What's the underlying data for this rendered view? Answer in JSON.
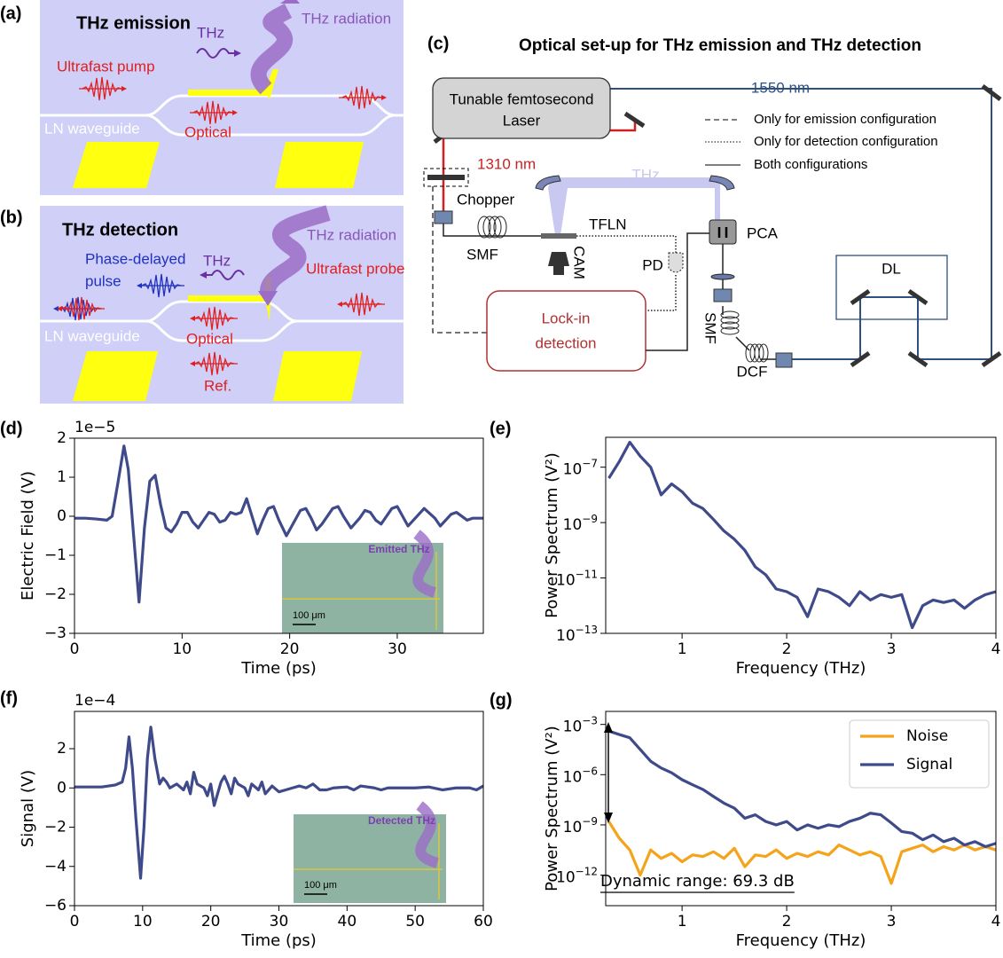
{
  "figure": {
    "panel_labels": [
      "(a)",
      "(b)",
      "(c)",
      "(d)",
      "(e)",
      "(f)",
      "(g)"
    ],
    "a": {
      "title": "THz emission",
      "radiation": "THz radiation",
      "pump": "Ultrafast pump",
      "thz": "THz",
      "optical": "Optical",
      "waveguide": "LN waveguide"
    },
    "b": {
      "title": "THz detection",
      "radiation": "THz radiation",
      "pulse": [
        "Phase-delayed",
        "pulse"
      ],
      "thz": "THz",
      "probe": "Ultrafast probe",
      "optical": "Optical",
      "waveguide": "LN waveguide",
      "ref": "Ref."
    },
    "c": {
      "title": "Optical set-up for THz emission and THz detection",
      "laser": [
        "Tunable femtosecond",
        "Laser"
      ],
      "wl1550": "1550 nm",
      "wl1310": "1310 nm",
      "thz": "THz",
      "chopper": "Chopper",
      "tfln": "TFLN",
      "smf1": "SMF",
      "cam": "CAM",
      "pd": "PD",
      "pca": "PCA",
      "lockin": [
        "Lock-in",
        "detection"
      ],
      "smf2": "SMF",
      "dcf": "DCF",
      "dl": "DL",
      "legend": [
        "Only for emission configuration",
        "Only for detection configuration",
        "Both configurations"
      ]
    }
  },
  "chart_data": [
    {
      "type": "line",
      "xlabel": "Time (ps)",
      "ylabel": "Electric Field (V)",
      "y_offset_label": "1e−5",
      "xlim": [
        0,
        38
      ],
      "xticks": [
        0,
        10,
        20,
        30
      ],
      "ylim": [
        -3,
        2
      ],
      "yticks": [
        {
          "value": -3,
          "label": "−3"
        },
        {
          "value": -2,
          "label": "−2"
        },
        {
          "value": -1,
          "label": "−1"
        },
        0,
        1,
        2
      ],
      "inset_text": "Emitted THz",
      "inset_scale": "100 μm",
      "x": [
        0,
        1,
        2,
        3,
        3.5,
        4,
        4.6,
        5,
        5.5,
        6,
        6.5,
        7,
        7.5,
        8,
        8.5,
        9,
        9.5,
        10,
        10.5,
        11,
        11.5,
        12,
        12.5,
        13,
        13.5,
        14,
        14.5,
        15,
        15.5,
        16,
        16.5,
        17,
        17.5,
        18,
        18.5,
        19,
        19.7,
        20.5,
        21,
        21.5,
        22,
        22.5,
        23,
        24,
        24.5,
        25,
        25.7,
        26.5,
        27,
        27.5,
        28,
        28.5,
        29,
        29.5,
        30,
        30.5,
        31,
        31.5,
        32.5,
        33.5,
        34,
        34.5,
        35,
        35.5,
        36.5,
        37,
        38
      ],
      "series": [
        {
          "color": "#3f4a8a",
          "values": [
            -0.05,
            -0.05,
            -0.07,
            -0.1,
            0,
            0.8,
            1.8,
            1.2,
            -0.5,
            -2.2,
            -0.3,
            0.9,
            1.05,
            0.3,
            -0.3,
            -0.4,
            -0.2,
            0.1,
            0.1,
            -0.15,
            -0.3,
            -0.1,
            0.1,
            0.05,
            -0.15,
            -0.1,
            0.1,
            0.05,
            0.1,
            0.45,
            0,
            -0.45,
            -0.1,
            0.2,
            0.25,
            -0.1,
            -0.5,
            -0.1,
            0.15,
            0.2,
            -0.05,
            -0.35,
            -0.2,
            0.2,
            0.25,
            0,
            -0.3,
            -0.05,
            0.15,
            0.1,
            -0.1,
            -0.2,
            0,
            0.2,
            0.25,
            0,
            -0.25,
            -0.1,
            0.2,
            -0.05,
            -0.25,
            -0.1,
            0.05,
            0.1,
            -0.1,
            -0.05,
            -0.05
          ]
        }
      ]
    },
    {
      "type": "line",
      "xlabel": "Frequency (THz)",
      "ylabel": "Power Spectrum (V²)",
      "yscale": "log",
      "xlim": [
        0.27,
        4
      ],
      "xticks": [
        1,
        2,
        3,
        4
      ],
      "ylim": [
        1e-13,
        1.2e-06
      ],
      "yticks": [
        {
          "value": 1e-13,
          "label": "10−13"
        },
        {
          "value": 1e-11,
          "label": "10−11"
        },
        {
          "value": 1e-09,
          "label": "10−9"
        },
        {
          "value": 1e-07,
          "label": "10−7"
        }
      ],
      "x": [
        0.3,
        0.4,
        0.5,
        0.6,
        0.7,
        0.8,
        0.9,
        1.0,
        1.1,
        1.2,
        1.3,
        1.4,
        1.5,
        1.6,
        1.7,
        1.8,
        1.9,
        2.0,
        2.1,
        2.2,
        2.3,
        2.4,
        2.5,
        2.6,
        2.7,
        2.8,
        2.9,
        3.0,
        3.1,
        3.2,
        3.3,
        3.4,
        3.5,
        3.6,
        3.7,
        3.8,
        3.9,
        4.0
      ],
      "series": [
        {
          "color": "#3f4a8a",
          "values": [
            4e-08,
            1.6e-07,
            8e-07,
            2.5e-07,
            1e-07,
            1e-08,
            2.5e-08,
            1.3e-08,
            5e-09,
            3.2e-09,
            1.3e-09,
            5e-10,
            2.5e-10,
            1e-10,
            2.5e-11,
            1.3e-11,
            4e-12,
            3.2e-12,
            2e-12,
            4e-13,
            4e-12,
            3.2e-12,
            2e-12,
            1e-12,
            3.2e-12,
            1.6e-12,
            2.5e-12,
            2e-12,
            2.5e-12,
            1.6e-13,
            1e-12,
            1.6e-12,
            1.3e-12,
            1.6e-12,
            8e-13,
            1.6e-12,
            2.5e-12,
            3.2e-12
          ]
        }
      ]
    },
    {
      "type": "line",
      "xlabel": "Time (ps)",
      "ylabel": "Signal (V)",
      "y_offset_label": "1e−4",
      "xlim": [
        0,
        60
      ],
      "xticks": [
        0,
        10,
        20,
        30,
        40,
        50,
        60
      ],
      "ylim": [
        -6,
        3.9
      ],
      "yticks": [
        {
          "value": -6,
          "label": "−6"
        },
        {
          "value": -4,
          "label": "−4"
        },
        {
          "value": -2,
          "label": "−2"
        },
        0,
        2
      ],
      "inset_text": "Detected THz",
      "inset_scale": "100 μm",
      "x": [
        0,
        2,
        4,
        5,
        6,
        7,
        7.5,
        8,
        8.5,
        9,
        9.7,
        10.2,
        10.7,
        11.2,
        11.8,
        12.5,
        13,
        13.5,
        14,
        15,
        16,
        16.5,
        17,
        17.5,
        18,
        19,
        19.5,
        20,
        20.5,
        21,
        21.5,
        22,
        22.5,
        23,
        23.5,
        24,
        25,
        25.5,
        26,
        27,
        27.5,
        28,
        29,
        30,
        31,
        32,
        33,
        34,
        35,
        36,
        37,
        38,
        40,
        41,
        42,
        44,
        45,
        46,
        48,
        50,
        52,
        54,
        56,
        58,
        59,
        60
      ],
      "series": [
        {
          "color": "#3f4a8a",
          "values": [
            0.05,
            0.05,
            0.05,
            0.1,
            0.15,
            0.3,
            1.0,
            2.6,
            1.0,
            -1.5,
            -4.6,
            -2.0,
            1.5,
            3.1,
            1.5,
            0.2,
            0.5,
            0.3,
            0,
            0.2,
            -0.1,
            0.3,
            -0.3,
            0.8,
            0.2,
            0,
            -0.4,
            0.2,
            -0.9,
            -0.3,
            0.3,
            0.6,
            0.2,
            -0.3,
            0.5,
            0.2,
            0,
            -0.4,
            0.2,
            -0.1,
            0.3,
            -0.3,
            0.1,
            -0.2,
            -0.1,
            0,
            0.1,
            0,
            0.2,
            -0.1,
            -0.1,
            0,
            0.05,
            -0.1,
            0.1,
            0,
            -0.1,
            0,
            0,
            0,
            0.05,
            -0.1,
            0,
            0,
            -0.1,
            0.1
          ]
        }
      ]
    },
    {
      "type": "line",
      "xlabel": "Frequency (THz)",
      "ylabel": "Power Spectrum (V²)",
      "yscale": "log",
      "legend": "upper right",
      "annotation": "Dynamic range: 69.3 dB",
      "xlim": [
        0.27,
        4
      ],
      "xticks": [
        1,
        2,
        3,
        4
      ],
      "ylim": [
        1.5e-14,
        0.006
      ],
      "yticks": [
        {
          "value": 1e-12,
          "label": "10−12"
        },
        {
          "value": 1e-09,
          "label": "10−9"
        },
        {
          "value": 1e-06,
          "label": "10−6"
        },
        {
          "value": 0.001,
          "label": "10−3"
        }
      ],
      "x": [
        0.3,
        0.4,
        0.5,
        0.6,
        0.7,
        0.8,
        0.9,
        1.0,
        1.1,
        1.2,
        1.3,
        1.4,
        1.5,
        1.6,
        1.7,
        1.8,
        1.9,
        2.0,
        2.1,
        2.2,
        2.3,
        2.4,
        2.5,
        2.6,
        2.7,
        2.8,
        2.9,
        3.0,
        3.1,
        3.2,
        3.3,
        3.4,
        3.5,
        3.6,
        3.7,
        3.8,
        3.9,
        4.0
      ],
      "series": [
        {
          "name": "Noise",
          "color": "#f5a31a",
          "values": [
            1.6e-09,
            1.6e-10,
            3.2e-11,
            1e-12,
            3.2e-11,
            1e-11,
            2e-11,
            6.3e-12,
            1.6e-11,
            1.3e-11,
            2.5e-11,
            1e-11,
            4e-11,
            3.2e-12,
            1.6e-11,
            1.3e-11,
            3.2e-11,
            1e-11,
            2e-11,
            1.3e-11,
            2.5e-11,
            1.6e-11,
            6.3e-11,
            3.2e-11,
            1.6e-11,
            2.5e-11,
            1.3e-11,
            3.2e-13,
            2.5e-11,
            4e-11,
            6.3e-11,
            2.5e-11,
            5e-11,
            3.2e-11,
            6.3e-11,
            3.2e-11,
            5e-11,
            3.2e-11
          ]
        },
        {
          "name": "Signal",
          "color": "#3f4a8a",
          "values": [
            0.0004,
            0.00025,
            0.00016,
            3.2e-05,
            6.3e-06,
            2.5e-06,
            1.3e-06,
            5e-07,
            2.5e-07,
            1.3e-07,
            5e-08,
            2e-08,
            1e-08,
            2.5e-09,
            4e-09,
            1.6e-09,
            1e-09,
            1.6e-09,
            5e-10,
            1e-09,
            6.3e-10,
            1e-09,
            7.9e-10,
            1.6e-09,
            2.5e-09,
            5e-09,
            4e-09,
            1.3e-09,
            4e-10,
            3.2e-10,
            1.3e-10,
            2.5e-10,
            1e-10,
            1.6e-10,
            6.3e-11,
            1e-10,
            5e-11,
            7.9e-11
          ]
        }
      ]
    }
  ]
}
